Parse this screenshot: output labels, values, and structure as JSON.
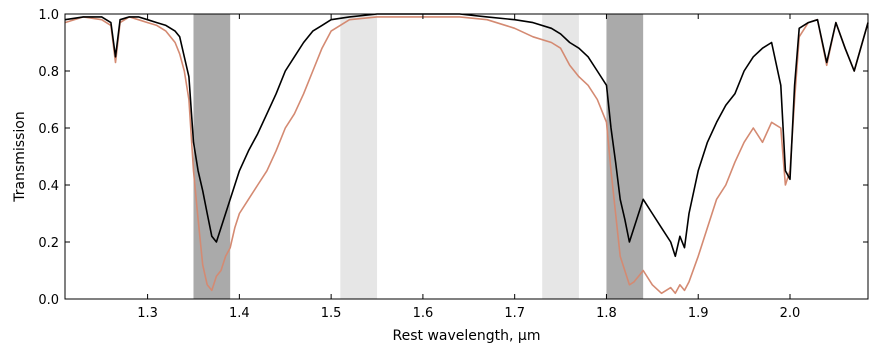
{
  "chart_data": {
    "type": "line",
    "title": "",
    "xlabel": "Rest wavelength, μm",
    "ylabel": "Transmission",
    "xlim": [
      1.21,
      2.085
    ],
    "ylim": [
      0.0,
      1.0
    ],
    "grid": false,
    "legend": "none",
    "x_ticks": [
      1.3,
      1.4,
      1.5,
      1.6,
      1.7,
      1.8,
      1.9,
      2.0
    ],
    "x_tick_labels": [
      "1.3",
      "1.4",
      "1.5",
      "1.6",
      "1.7",
      "1.8",
      "1.9",
      "2.0"
    ],
    "y_ticks": [
      0.0,
      0.2,
      0.4,
      0.6,
      0.8,
      1.0
    ],
    "y_tick_labels": [
      "0.0",
      "0.2",
      "0.4",
      "0.6",
      "0.8",
      "1.0"
    ],
    "shaded_regions": [
      {
        "x0": 1.35,
        "x1": 1.39,
        "shade": "dark",
        "color": "#aaaaaa"
      },
      {
        "x0": 1.51,
        "x1": 1.55,
        "shade": "light",
        "color": "#e6e6e6"
      },
      {
        "x0": 1.73,
        "x1": 1.77,
        "shade": "light",
        "color": "#e6e6e6"
      },
      {
        "x0": 1.8,
        "x1": 1.84,
        "shade": "dark",
        "color": "#aaaaaa"
      }
    ],
    "series": [
      {
        "color": "#d48a72",
        "x": [
          1.21,
          1.23,
          1.25,
          1.26,
          1.265,
          1.27,
          1.28,
          1.29,
          1.3,
          1.31,
          1.32,
          1.33,
          1.335,
          1.34,
          1.345,
          1.35,
          1.355,
          1.36,
          1.365,
          1.37,
          1.375,
          1.38,
          1.385,
          1.39,
          1.395,
          1.4,
          1.41,
          1.42,
          1.43,
          1.44,
          1.45,
          1.46,
          1.47,
          1.48,
          1.49,
          1.5,
          1.52,
          1.55,
          1.58,
          1.61,
          1.64,
          1.67,
          1.7,
          1.72,
          1.74,
          1.75,
          1.76,
          1.77,
          1.78,
          1.79,
          1.8,
          1.805,
          1.81,
          1.815,
          1.82,
          1.825,
          1.83,
          1.835,
          1.84,
          1.85,
          1.86,
          1.87,
          1.875,
          1.88,
          1.885,
          1.89,
          1.9,
          1.91,
          1.92,
          1.93,
          1.94,
          1.95,
          1.96,
          1.97,
          1.98,
          1.99,
          1.995,
          2.0,
          2.005,
          2.01,
          2.02,
          2.03,
          2.04,
          2.05,
          2.06,
          2.07,
          2.085
        ],
        "y": [
          0.97,
          0.99,
          0.98,
          0.96,
          0.83,
          0.97,
          0.99,
          0.98,
          0.97,
          0.96,
          0.94,
          0.9,
          0.86,
          0.8,
          0.7,
          0.45,
          0.28,
          0.12,
          0.05,
          0.03,
          0.08,
          0.1,
          0.15,
          0.18,
          0.25,
          0.3,
          0.35,
          0.4,
          0.45,
          0.52,
          0.6,
          0.65,
          0.72,
          0.8,
          0.88,
          0.94,
          0.98,
          0.99,
          0.99,
          0.99,
          0.99,
          0.98,
          0.95,
          0.92,
          0.9,
          0.88,
          0.82,
          0.78,
          0.75,
          0.7,
          0.62,
          0.45,
          0.3,
          0.15,
          0.1,
          0.05,
          0.06,
          0.08,
          0.1,
          0.05,
          0.02,
          0.04,
          0.02,
          0.05,
          0.03,
          0.06,
          0.15,
          0.25,
          0.35,
          0.4,
          0.48,
          0.55,
          0.6,
          0.55,
          0.62,
          0.6,
          0.4,
          0.45,
          0.7,
          0.92,
          0.97,
          0.98,
          0.82,
          0.97,
          0.88,
          0.8,
          0.97
        ]
      },
      {
        "color": "#000000",
        "x": [
          1.21,
          1.23,
          1.25,
          1.26,
          1.265,
          1.27,
          1.28,
          1.29,
          1.3,
          1.31,
          1.32,
          1.33,
          1.335,
          1.34,
          1.345,
          1.35,
          1.355,
          1.36,
          1.365,
          1.37,
          1.375,
          1.38,
          1.385,
          1.39,
          1.395,
          1.4,
          1.41,
          1.42,
          1.43,
          1.44,
          1.45,
          1.46,
          1.47,
          1.48,
          1.49,
          1.5,
          1.52,
          1.55,
          1.58,
          1.61,
          1.64,
          1.67,
          1.7,
          1.72,
          1.74,
          1.75,
          1.76,
          1.77,
          1.78,
          1.79,
          1.8,
          1.805,
          1.81,
          1.815,
          1.82,
          1.825,
          1.83,
          1.835,
          1.84,
          1.85,
          1.86,
          1.87,
          1.875,
          1.88,
          1.885,
          1.89,
          1.9,
          1.91,
          1.92,
          1.93,
          1.94,
          1.95,
          1.96,
          1.97,
          1.98,
          1.99,
          1.995,
          2.0,
          2.005,
          2.01,
          2.02,
          2.03,
          2.04,
          2.05,
          2.06,
          2.07,
          2.085
        ],
        "y": [
          0.98,
          0.99,
          0.99,
          0.97,
          0.85,
          0.98,
          0.99,
          0.99,
          0.98,
          0.97,
          0.96,
          0.94,
          0.92,
          0.85,
          0.78,
          0.55,
          0.45,
          0.38,
          0.3,
          0.22,
          0.2,
          0.25,
          0.3,
          0.35,
          0.4,
          0.45,
          0.52,
          0.58,
          0.65,
          0.72,
          0.8,
          0.85,
          0.9,
          0.94,
          0.96,
          0.98,
          0.99,
          1.0,
          1.0,
          1.0,
          1.0,
          0.99,
          0.98,
          0.97,
          0.95,
          0.93,
          0.9,
          0.88,
          0.85,
          0.8,
          0.75,
          0.6,
          0.48,
          0.35,
          0.28,
          0.2,
          0.25,
          0.3,
          0.35,
          0.3,
          0.25,
          0.2,
          0.15,
          0.22,
          0.18,
          0.3,
          0.45,
          0.55,
          0.62,
          0.68,
          0.72,
          0.8,
          0.85,
          0.88,
          0.9,
          0.75,
          0.45,
          0.42,
          0.75,
          0.95,
          0.97,
          0.98,
          0.83,
          0.97,
          0.88,
          0.8,
          0.97
        ]
      }
    ]
  }
}
